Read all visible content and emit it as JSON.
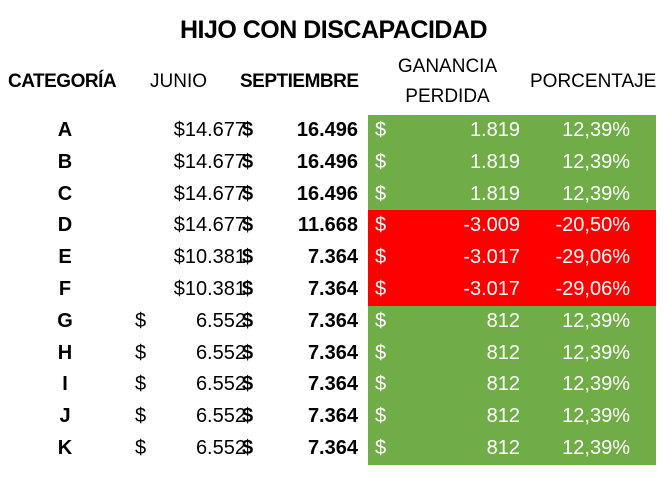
{
  "title": "HIJO CON DISCAPACIDAD",
  "headers": {
    "categoria": "CATEGORÍA",
    "junio": "JUNIO",
    "septiembre": "SEPTIEMBRE",
    "ganancia_line1": "GANANCIA",
    "ganancia_line2": "PERDIDA",
    "porcentaje": "PORCENTAJE"
  },
  "colors": {
    "positive": "#70ad47",
    "negative": "#ff0000"
  },
  "rows": [
    {
      "cat": "A",
      "junio": "$14.677",
      "sep_cur": "$",
      "sep": "16.496",
      "gan_cur": "$",
      "gan": "1.819",
      "pct": "12,39%",
      "status": "positive"
    },
    {
      "cat": "B",
      "junio": "$14.677",
      "sep_cur": "$",
      "sep": "16.496",
      "gan_cur": "$",
      "gan": "1.819",
      "pct": "12,39%",
      "status": "positive"
    },
    {
      "cat": "C",
      "junio": "$14.677",
      "sep_cur": "$",
      "sep": "16.496",
      "gan_cur": "$",
      "gan": "1.819",
      "pct": "12,39%",
      "status": "positive"
    },
    {
      "cat": "D",
      "junio": "$14.677",
      "sep_cur": "$",
      "sep": "11.668",
      "gan_cur": "$",
      "gan": "-3.009",
      "pct": "-20,50%",
      "status": "negative"
    },
    {
      "cat": "E",
      "junio": "$10.381",
      "sep_cur": "$",
      "sep": "7.364",
      "gan_cur": "$",
      "gan": "-3.017",
      "pct": "-29,06%",
      "status": "negative"
    },
    {
      "cat": "F",
      "junio": "$10.381",
      "sep_cur": "$",
      "sep": "7.364",
      "gan_cur": "$",
      "gan": "-3.017",
      "pct": "-29,06%",
      "status": "negative"
    },
    {
      "cat": "G",
      "junio_cur": "$",
      "junio": "6.552",
      "sep_cur": "$",
      "sep": "7.364",
      "gan_cur": "$",
      "gan": "812",
      "pct": "12,39%",
      "status": "positive"
    },
    {
      "cat": "H",
      "junio_cur": "$",
      "junio": "6.552",
      "sep_cur": "$",
      "sep": "7.364",
      "gan_cur": "$",
      "gan": "812",
      "pct": "12,39%",
      "status": "positive"
    },
    {
      "cat": "I",
      "junio_cur": "$",
      "junio": "6.552",
      "sep_cur": "$",
      "sep": "7.364",
      "gan_cur": "$",
      "gan": "812",
      "pct": "12,39%",
      "status": "positive"
    },
    {
      "cat": "J",
      "junio_cur": "$",
      "junio": "6.552",
      "sep_cur": "$",
      "sep": "7.364",
      "gan_cur": "$",
      "gan": "812",
      "pct": "12,39%",
      "status": "positive"
    },
    {
      "cat": "K",
      "junio_cur": "$",
      "junio": "6.552",
      "sep_cur": "$",
      "sep": "7.364",
      "gan_cur": "$",
      "gan": "812",
      "pct": "12,39%",
      "status": "positive"
    }
  ]
}
